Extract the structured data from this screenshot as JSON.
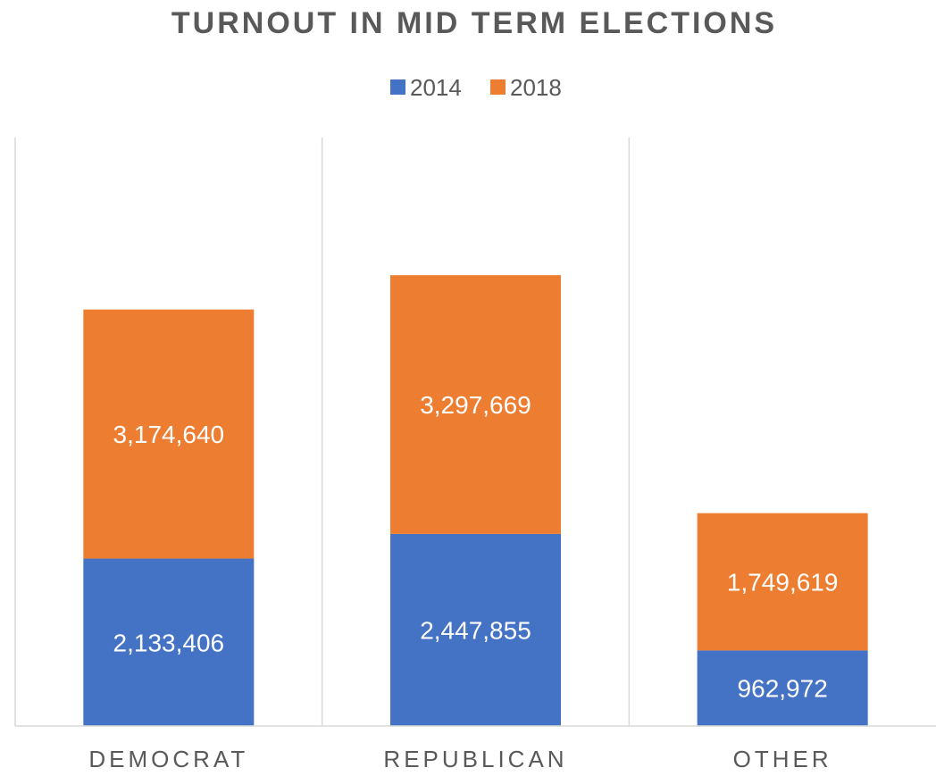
{
  "chart_data": {
    "type": "bar",
    "stacked": true,
    "title": "TURNOUT IN MID TERM ELECTIONS",
    "categories": [
      "DEMOCRAT",
      "REPUBLICAN",
      "OTHER"
    ],
    "series": [
      {
        "name": "2014",
        "color": "#4472C4",
        "values": [
          2133406,
          2447855,
          962972
        ],
        "labels": [
          "2,133,406",
          "2,447,855",
          "962,972"
        ]
      },
      {
        "name": "2018",
        "color": "#ED7D31",
        "values": [
          3174640,
          3297669,
          1749619
        ],
        "labels": [
          "3,174,640",
          "3,297,669",
          "1,749,619"
        ]
      }
    ],
    "ylim": [
      0,
      7500000
    ],
    "legend_position": "top",
    "gridlines": "vertical separators between categories",
    "data_labels": true
  }
}
